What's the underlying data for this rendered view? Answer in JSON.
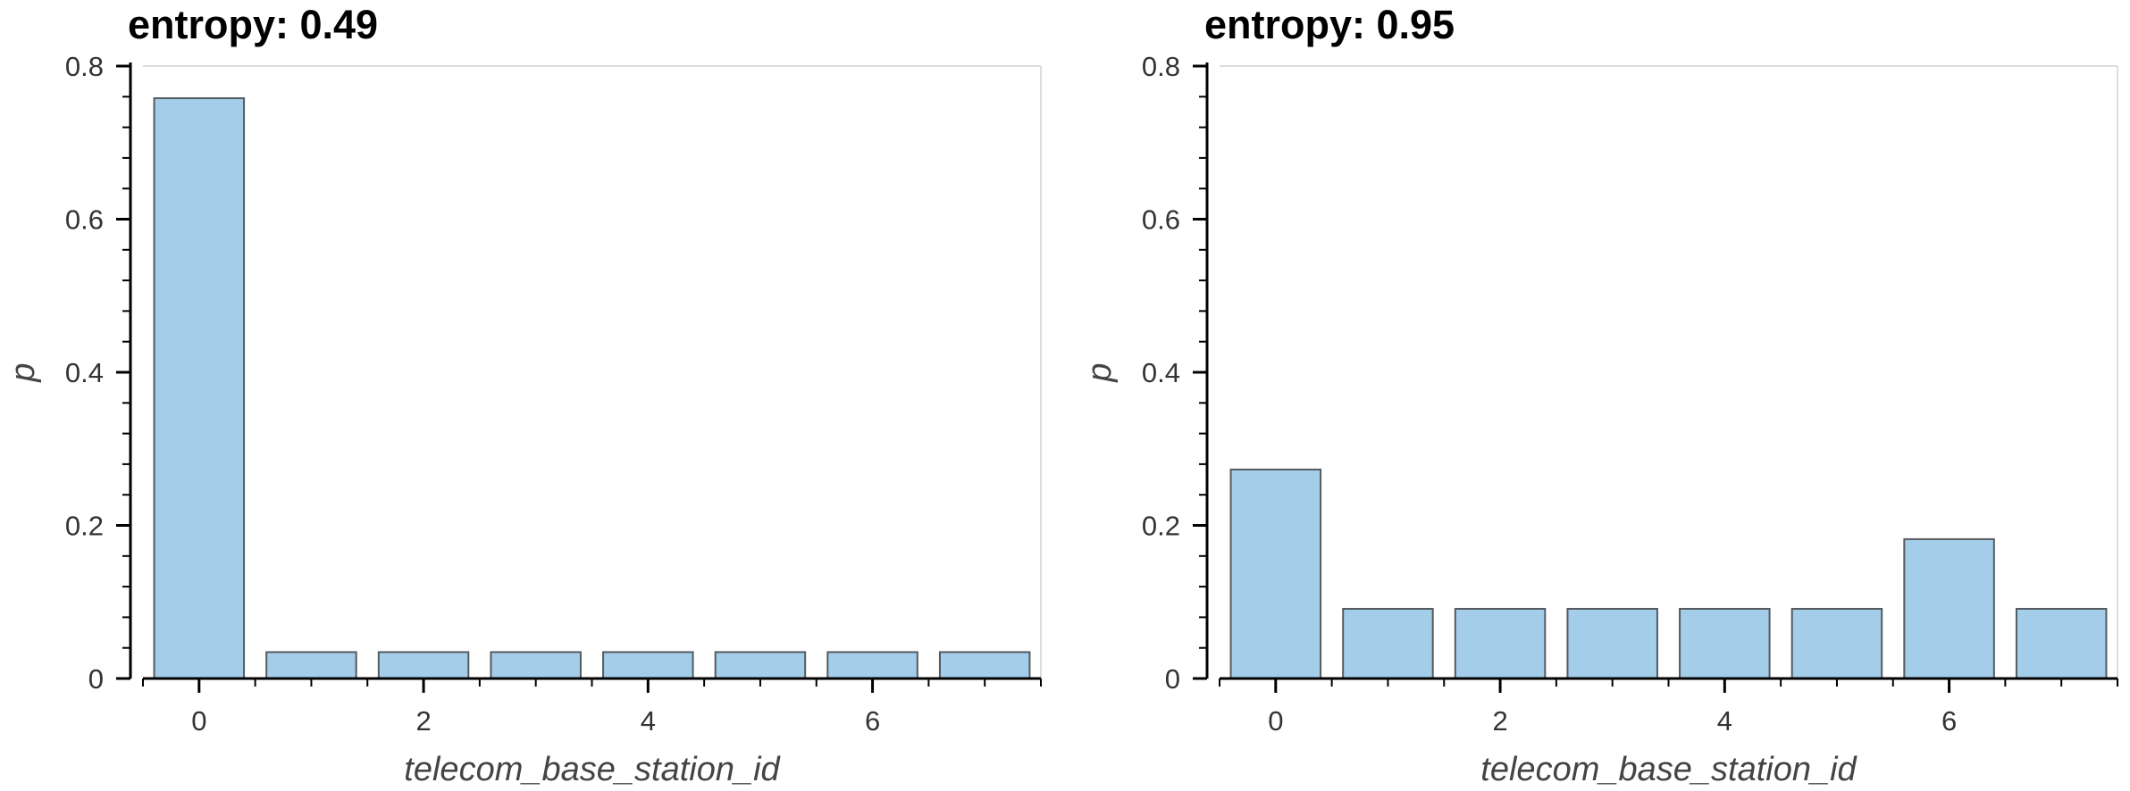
{
  "chart_data": [
    {
      "type": "bar",
      "title": "entropy: 0.49",
      "xlabel": "telecom_base_station_id",
      "ylabel": "p",
      "x": [
        0,
        1,
        2,
        3,
        4,
        5,
        6,
        7
      ],
      "values": [
        0.758,
        0.0345,
        0.0345,
        0.0345,
        0.0345,
        0.0345,
        0.0345,
        0.0345
      ],
      "xticks": [
        "0",
        "2",
        "4",
        "6"
      ],
      "yticks": [
        "0",
        "0.2",
        "0.4",
        "0.6",
        "0.8"
      ],
      "ylim": [
        0,
        0.8
      ],
      "xlim": [
        -0.5,
        7.5
      ],
      "bar_color": "#a3cde9",
      "bar_edge_color": "#555b60",
      "grid": false
    },
    {
      "type": "bar",
      "title": "entropy: 0.95",
      "xlabel": "telecom_base_station_id",
      "ylabel": "p",
      "x": [
        0,
        1,
        2,
        3,
        4,
        5,
        6,
        7
      ],
      "values": [
        0.273,
        0.091,
        0.091,
        0.091,
        0.091,
        0.091,
        0.182,
        0.091
      ],
      "xticks": [
        "0",
        "2",
        "4",
        "6"
      ],
      "yticks": [
        "0",
        "0.2",
        "0.4",
        "0.6",
        "0.8"
      ],
      "ylim": [
        0,
        0.8
      ],
      "xlim": [
        -0.5,
        7.5
      ],
      "bar_color": "#a3cde9",
      "bar_edge_color": "#555b60",
      "grid": false
    }
  ]
}
